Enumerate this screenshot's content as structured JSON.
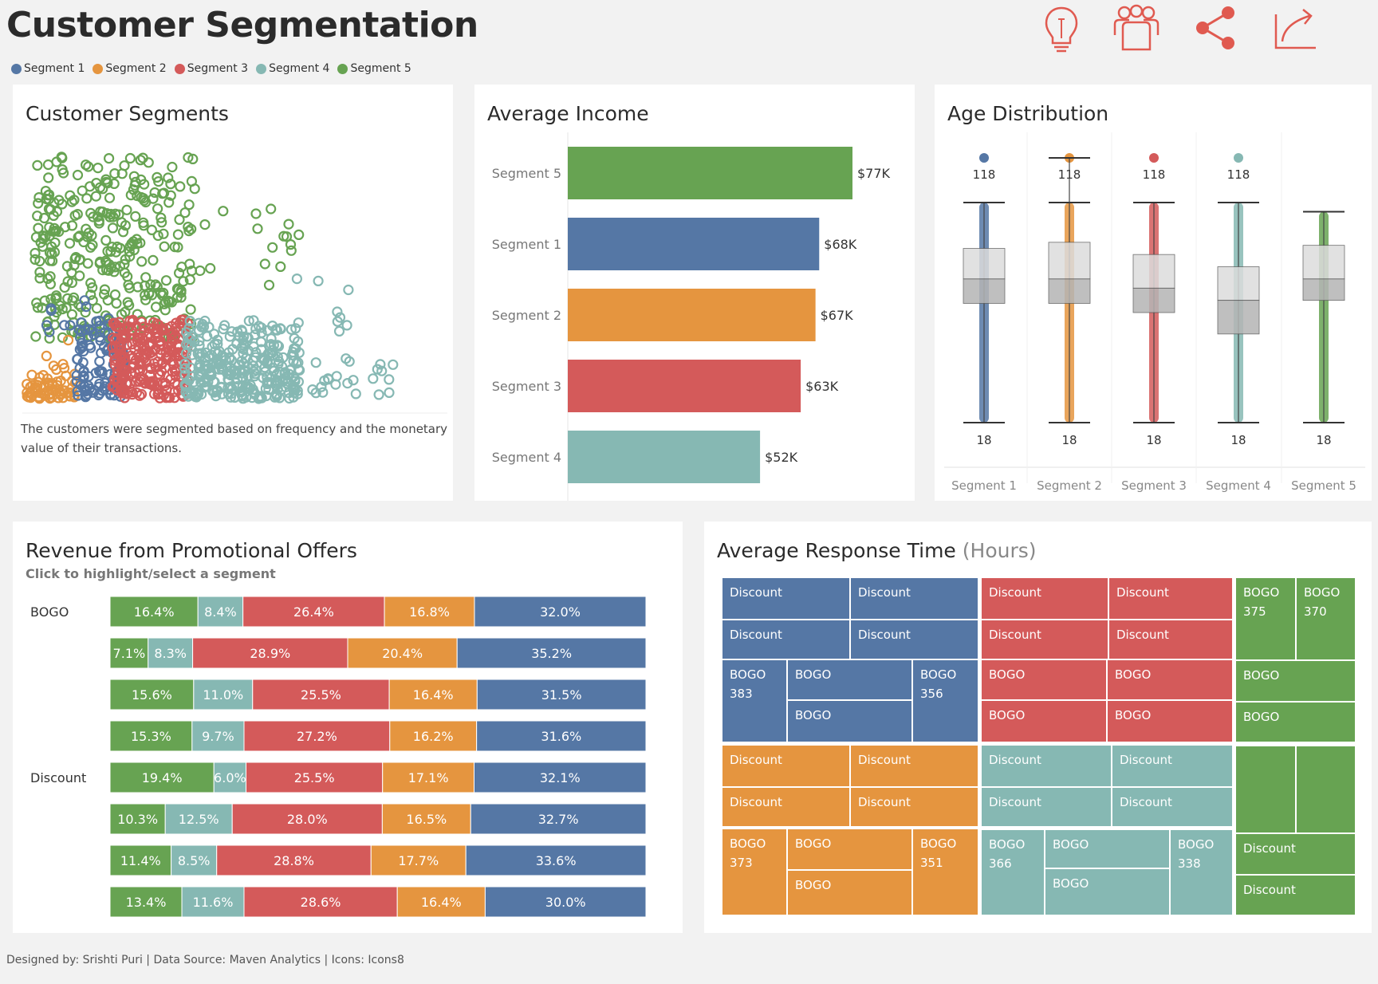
{
  "header": {
    "title": "Customer Segmentation"
  },
  "legend": [
    {
      "label": "Segment 1",
      "color": "#5577a5"
    },
    {
      "label": "Segment 2",
      "color": "#e5953f"
    },
    {
      "label": "Segment 3",
      "color": "#d45a5a"
    },
    {
      "label": "Segment 4",
      "color": "#86b8b3"
    },
    {
      "label": "Segment 5",
      "color": "#67a352"
    }
  ],
  "icons": [
    "lightbulb-icon",
    "users-icon",
    "share-icon",
    "export-icon"
  ],
  "scatter": {
    "title": "Customer Segments",
    "note": "The customers were segmented based on frequency and the monetary value of their transactions."
  },
  "chart_data": [
    {
      "type": "bar",
      "title": "Average Income",
      "categories": [
        "Segment 5",
        "Segment 1",
        "Segment 2",
        "Segment 3",
        "Segment 4"
      ],
      "values": [
        77,
        68,
        67,
        63,
        52
      ],
      "labels": [
        "$77K",
        "$68K",
        "$67K",
        "$63K",
        "$52K"
      ],
      "colors": [
        "#67a352",
        "#5577a5",
        "#e5953f",
        "#d45a5a",
        "#86b8b3"
      ],
      "unit": "K$",
      "xlim": [
        0,
        77
      ]
    },
    {
      "type": "box",
      "title": "Age Distribution",
      "categories": [
        "Segment 1",
        "Segment 2",
        "Segment 3",
        "Segment 4",
        "Segment 5"
      ],
      "colors": [
        "#5577a5",
        "#e5953f",
        "#d45a5a",
        "#86b8b3",
        "#67a352"
      ],
      "max_labels": [
        "118",
        "118",
        "118",
        "118",
        ""
      ],
      "min_labels": [
        "18",
        "18",
        "18",
        "18",
        "18"
      ],
      "whisker_low": [
        18,
        18,
        18,
        18,
        18
      ],
      "whisker_high": [
        90,
        90,
        90,
        90,
        87
      ],
      "q1": [
        57,
        57,
        54,
        47,
        58
      ],
      "median": [
        65,
        65,
        62,
        58,
        65
      ],
      "q3": [
        75,
        77,
        73,
        69,
        76
      ],
      "outlier_max": [
        118,
        118,
        118,
        118,
        null
      ],
      "ylim": [
        18,
        118
      ]
    },
    {
      "type": "stacked-bar",
      "title": "Revenue from Promotional Offers",
      "subtitle": "Click to highlight/select a segment",
      "groups": [
        "BOGO",
        "",
        "",
        "",
        "Discount",
        "",
        "",
        ""
      ],
      "series_order": [
        "Segment 5",
        "Segment 4",
        "Segment 3",
        "Segment 2",
        "Segment 1"
      ],
      "colors": [
        "#67a352",
        "#86b8b3",
        "#d45a5a",
        "#e5953f",
        "#5577a5"
      ],
      "rows": [
        [
          16.4,
          8.4,
          26.4,
          16.8,
          32.0
        ],
        [
          7.1,
          8.3,
          28.9,
          20.4,
          35.2
        ],
        [
          15.6,
          11.0,
          25.5,
          16.4,
          31.5
        ],
        [
          15.3,
          9.7,
          27.2,
          16.2,
          31.6
        ],
        [
          19.4,
          6.0,
          25.5,
          17.1,
          32.1
        ],
        [
          10.3,
          12.5,
          28.0,
          16.5,
          32.7
        ],
        [
          11.4,
          8.5,
          28.8,
          17.7,
          33.6
        ],
        [
          13.4,
          11.6,
          28.6,
          16.4,
          30.0
        ]
      ],
      "row_labels": [
        [
          "16.4%",
          "8.4%",
          "26.4%",
          "16.8%",
          "32.0%"
        ],
        [
          "7.1%",
          "8.3%",
          "28.9%",
          "20.4%",
          "35.2%"
        ],
        [
          "15.6%",
          "11.0%",
          "25.5%",
          "16.4%",
          "31.5%"
        ],
        [
          "15.3%",
          "9.7%",
          "27.2%",
          "16.2%",
          "31.6%"
        ],
        [
          "19.4%",
          "6.0%",
          "25.5%",
          "17.1%",
          "32.1%"
        ],
        [
          "10.3%",
          "12.5%",
          "28.0%",
          "16.5%",
          "32.7%"
        ],
        [
          "11.4%",
          "8.5%",
          "28.8%",
          "17.7%",
          "33.6%"
        ],
        [
          "13.4%",
          "11.6%",
          "28.6%",
          "16.4%",
          "30.0%"
        ]
      ]
    }
  ],
  "treemap": {
    "title": "Average Response Time",
    "unit": "(Hours)",
    "cells": {
      "s1": [
        "Discount",
        "Discount",
        "Discount",
        "Discount",
        "BOGO",
        "383",
        "BOGO",
        "BOGO",
        "BOGO",
        "356"
      ],
      "s3": [
        "Discount",
        "Discount",
        "Discount",
        "Discount",
        "BOGO",
        "BOGO",
        "BOGO",
        "BOGO"
      ],
      "s5": [
        "BOGO",
        "375",
        "BOGO",
        "370",
        "BOGO",
        "BOGO",
        "Discount",
        "Discount"
      ],
      "s2": [
        "Discount",
        "Discount",
        "Discount",
        "Discount",
        "BOGO",
        "373",
        "BOGO",
        "BOGO",
        "BOGO",
        "351"
      ],
      "s4": [
        "Discount",
        "Discount",
        "Discount",
        "Discount",
        "BOGO",
        "366",
        "BOGO",
        "BOGO",
        "BOGO",
        "338"
      ]
    }
  },
  "footer": {
    "text": "Designed by: Srishti Puri | Data Source: Maven Analytics | Icons: Icons8"
  }
}
